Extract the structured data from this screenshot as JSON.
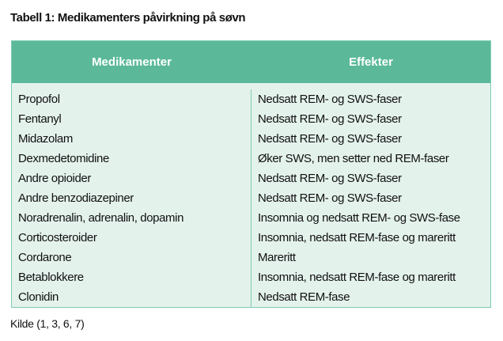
{
  "title": "Tabell 1: Medikamenters påvirkning på søvn",
  "table": {
    "headers": [
      "Medikamenter",
      "Effekter"
    ],
    "rows": [
      [
        "Propofol",
        "Nedsatt REM- og SWS-faser"
      ],
      [
        "Fentanyl",
        "Nedsatt REM- og SWS-faser"
      ],
      [
        "Midazolam",
        "Nedsatt REM- og SWS-faser"
      ],
      [
        "Dexmedetomidine",
        "Øker SWS, men setter ned REM-faser"
      ],
      [
        "Andre opioider",
        "Nedsatt REM- og SWS-faser"
      ],
      [
        "Andre benzodiazepiner",
        "Nedsatt REM- og SWS-faser"
      ],
      [
        "Noradrenalin, adrenalin, dopamin",
        "Insomnia og nedsatt REM- og SWS-fase"
      ],
      [
        "Corticosteroider",
        "Insomnia, nedsatt REM-fase og mareritt"
      ],
      [
        "Cordarone",
        "Mareritt"
      ],
      [
        "Betablokkere",
        "Insomnia, nedsatt REM-fase og mareritt"
      ],
      [
        "Clonidin",
        "Nedsatt REM-fase"
      ]
    ]
  },
  "source": "Kilde (1, 3, 6, 7)",
  "colors": {
    "header_bg": "#5bb99a",
    "body_bg": "#e4f2ec",
    "border": "#7fcbb0"
  }
}
